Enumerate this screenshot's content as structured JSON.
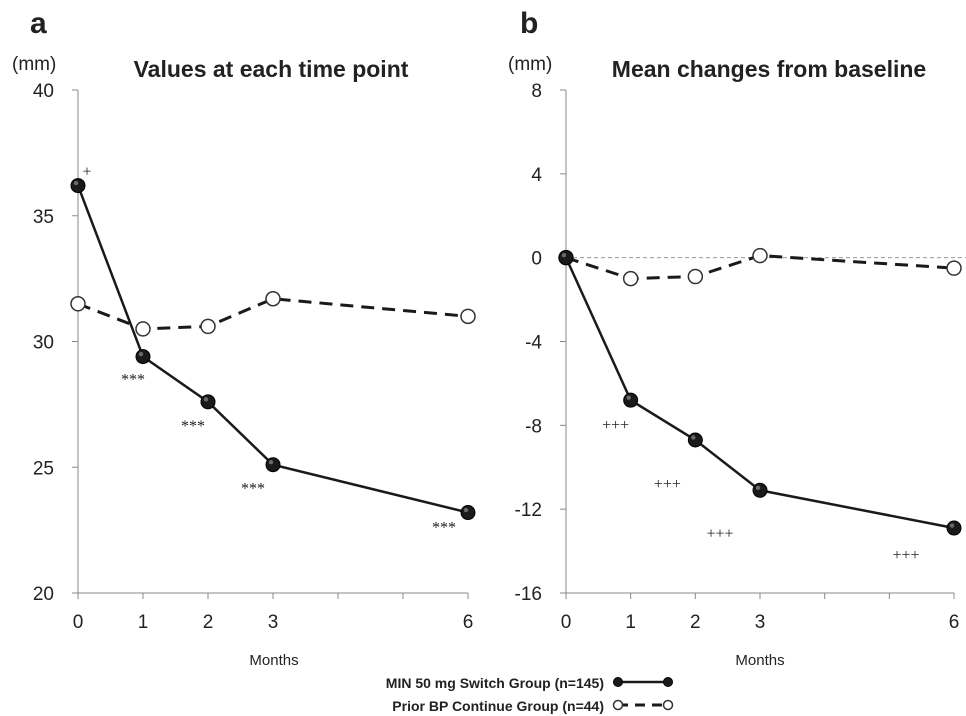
{
  "chart_data": [
    {
      "panel": "a",
      "type": "line",
      "title": "Values at each time point",
      "unit": "(mm)",
      "xlabel": "Months",
      "x": [
        0,
        1,
        2,
        3,
        6
      ],
      "ylim": [
        20,
        40
      ],
      "yticks": [
        20,
        25,
        30,
        35,
        40
      ],
      "ytick_labels": [
        "20",
        "25",
        "30",
        "35",
        "40"
      ],
      "series": [
        {
          "name": "MIN 50 mg Switch Group (n=145)",
          "values": [
            36.2,
            29.4,
            27.6,
            25.1,
            23.2
          ],
          "style": "solid-filled"
        },
        {
          "name": "Prior BP Continue Group (n=44)",
          "values": [
            31.5,
            30.5,
            30.6,
            31.7,
            31.0
          ],
          "style": "dashed-open"
        }
      ],
      "annotations": [
        {
          "text": "+",
          "x": 0,
          "near": "MIN 50 mg Switch Group (n=145)"
        },
        {
          "text": "***",
          "x": 1,
          "near": "MIN 50 mg Switch Group (n=145)"
        },
        {
          "text": "***",
          "x": 2,
          "near": "MIN 50 mg Switch Group (n=145)"
        },
        {
          "text": "***",
          "x": 3,
          "near": "MIN 50 mg Switch Group (n=145)"
        },
        {
          "text": "***",
          "x": 6,
          "near": "MIN 50 mg Switch Group (n=145)"
        }
      ]
    },
    {
      "panel": "b",
      "type": "line",
      "title": "Mean changes from baseline",
      "unit": "(mm)",
      "xlabel": "Months",
      "x": [
        0,
        1,
        2,
        3,
        6
      ],
      "ylim": [
        -16,
        8
      ],
      "yticks": [
        -16,
        -12,
        -8,
        -4,
        0,
        4,
        8
      ],
      "ytick_labels": [
        "-16",
        "-12",
        "-8",
        "-4",
        "0",
        "4",
        "8"
      ],
      "reference_line": 0,
      "series": [
        {
          "name": "MIN 50 mg Switch Group (n=145)",
          "values": [
            0,
            -6.8,
            -8.7,
            -11.1,
            -12.9
          ],
          "style": "solid-filled"
        },
        {
          "name": "Prior BP Continue Group (n=44)",
          "values": [
            0,
            -1.0,
            -0.9,
            0.1,
            -0.5
          ],
          "style": "dashed-open"
        }
      ],
      "annotations": [
        {
          "text": "+++",
          "x": 1,
          "near": "MIN 50 mg Switch Group (n=145)"
        },
        {
          "text": "+++",
          "x": 2,
          "near": "MIN 50 mg Switch Group (n=145)"
        },
        {
          "text": "+++",
          "x": 3,
          "near": "MIN 50 mg Switch Group (n=145)"
        },
        {
          "text": "+++",
          "x": 6,
          "near": "MIN 50 mg Switch Group (n=145)"
        }
      ]
    }
  ],
  "legend": [
    {
      "label": "MIN 50 mg Switch Group (n=145)",
      "style": "solid-filled"
    },
    {
      "label": "Prior BP Continue Group (n=44)",
      "style": "dashed-open"
    }
  ],
  "colors": {
    "line": "#1a1a1a",
    "axis": "#8a8a8a",
    "grid_zero": "#9a9a9a",
    "marker_fill": "#1a1a1a",
    "open_fill": "#ffffff"
  }
}
